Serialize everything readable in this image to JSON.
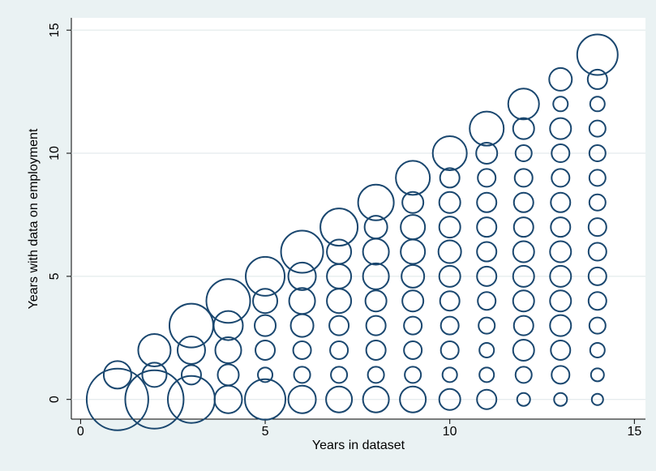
{
  "chart_data": {
    "type": "scatter",
    "xlabel": "Years in dataset",
    "ylabel": "Years with data on employment",
    "color": "#1a476f",
    "grid": true,
    "xlim": [
      -0.25,
      15.3
    ],
    "ylim": [
      -0.8,
      15.5
    ],
    "xticks": [
      0,
      5,
      10,
      15
    ],
    "yticks": [
      0,
      5,
      10,
      15
    ],
    "x": [
      1,
      1,
      2,
      2,
      2,
      3,
      3,
      3,
      3,
      4,
      4,
      4,
      4,
      4,
      5,
      5,
      5,
      5,
      5,
      5,
      6,
      6,
      6,
      6,
      6,
      6,
      6,
      7,
      7,
      7,
      7,
      7,
      7,
      7,
      7,
      8,
      8,
      8,
      8,
      8,
      8,
      8,
      8,
      8,
      9,
      9,
      9,
      9,
      9,
      9,
      9,
      9,
      9,
      9,
      10,
      10,
      10,
      10,
      10,
      10,
      10,
      10,
      10,
      10,
      10,
      11,
      11,
      11,
      11,
      11,
      11,
      11,
      11,
      11,
      11,
      11,
      11,
      12,
      12,
      12,
      12,
      12,
      12,
      12,
      12,
      12,
      12,
      12,
      12,
      12,
      13,
      13,
      13,
      13,
      13,
      13,
      13,
      13,
      13,
      13,
      13,
      13,
      13,
      13,
      14,
      14,
      14,
      14,
      14,
      14,
      14,
      14,
      14,
      14,
      14,
      14,
      14,
      14,
      14
    ],
    "values": [
      0,
      1,
      0,
      1,
      2,
      0,
      1,
      2,
      3,
      0,
      1,
      2,
      3,
      4,
      0,
      1,
      2,
      3,
      4,
      5,
      0,
      1,
      2,
      3,
      4,
      5,
      6,
      0,
      1,
      2,
      3,
      4,
      5,
      6,
      7,
      0,
      1,
      2,
      3,
      4,
      5,
      6,
      7,
      8,
      0,
      1,
      2,
      3,
      4,
      5,
      6,
      7,
      8,
      9,
      0,
      1,
      2,
      3,
      4,
      5,
      6,
      7,
      8,
      9,
      10,
      0,
      1,
      2,
      3,
      4,
      5,
      6,
      7,
      8,
      9,
      10,
      11,
      0,
      1,
      2,
      3,
      4,
      5,
      6,
      7,
      8,
      9,
      10,
      11,
      12,
      0,
      1,
      2,
      3,
      4,
      5,
      6,
      7,
      8,
      9,
      10,
      11,
      12,
      13,
      0,
      1,
      2,
      3,
      4,
      5,
      6,
      7,
      8,
      9,
      10,
      11,
      12,
      13,
      14
    ],
    "sizes": [
      38,
      17,
      36,
      15,
      20,
      29,
      12,
      17,
      27,
      17,
      13,
      16,
      18,
      27,
      25,
      9,
      12,
      13,
      15,
      24,
      17,
      10,
      11,
      14,
      16,
      17,
      26,
      16,
      10,
      11,
      12,
      15,
      15,
      15,
      23,
      16,
      10,
      12,
      12,
      13,
      16,
      16,
      14,
      22,
      16,
      10,
      11,
      11,
      13,
      14,
      15,
      15,
      13,
      21,
      13,
      9,
      11,
      11,
      12,
      13,
      14,
      13,
      13,
      12,
      21,
      12,
      9,
      9,
      10,
      11,
      12,
      12,
      12,
      12,
      11,
      13,
      21,
      8,
      10,
      13,
      12,
      13,
      13,
      13,
      12,
      12,
      11,
      10,
      13,
      19,
      8,
      11,
      12,
      13,
      13,
      13,
      13,
      12,
      12,
      11,
      11,
      13,
      9,
      14,
      7,
      8,
      9,
      10,
      11,
      11,
      11,
      11,
      10,
      10,
      10,
      10,
      9,
      12,
      25
    ]
  }
}
